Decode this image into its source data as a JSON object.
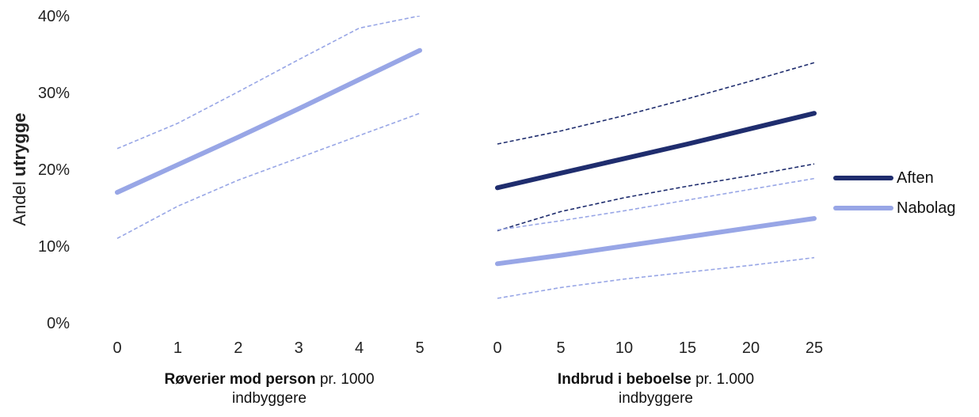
{
  "colors": {
    "aften": "#1f2d6e",
    "nabolag": "#98a6e6"
  },
  "y_axis": {
    "label_prefix": "Andel ",
    "label_bold": "utrygge",
    "ticks": [
      "0%",
      "10%",
      "20%",
      "30%",
      "40%"
    ]
  },
  "legend": {
    "aften": "Aften",
    "nabolag": "Nabolag"
  },
  "chart_data": [
    {
      "type": "line",
      "x_label_bold": "Røverier mod person",
      "x_label_rest": " pr. 1000",
      "x_label_line2": "indbyggere",
      "x": [
        0,
        1,
        2,
        3,
        4,
        5
      ],
      "ylim": [
        0,
        40
      ],
      "series": [
        {
          "name": "Nabolag",
          "color_key": "nabolag",
          "values": [
            17,
            20.6,
            24.2,
            27.9,
            31.7,
            35.5
          ],
          "ci_lower": [
            11,
            15.2,
            18.6,
            21.5,
            24.4,
            27.3
          ],
          "ci_upper": [
            22.7,
            26,
            30.1,
            34.3,
            38.4,
            42.6
          ]
        }
      ]
    },
    {
      "type": "line",
      "x_label_bold": "Indbrud i beboelse",
      "x_label_rest": " pr. 1.000",
      "x_label_line2": "indbyggere",
      "x": [
        0,
        5,
        10,
        15,
        20,
        25
      ],
      "ylim": [
        0,
        40
      ],
      "series": [
        {
          "name": "Aften",
          "color_key": "aften",
          "values": [
            17.6,
            19.5,
            21.4,
            23.3,
            25.3,
            27.3
          ],
          "ci_lower": [
            12,
            14.5,
            16.3,
            17.8,
            19.2,
            20.7
          ],
          "ci_upper": [
            23.3,
            25,
            27,
            29.2,
            31.5,
            33.9
          ]
        },
        {
          "name": "Nabolag",
          "color_key": "nabolag",
          "values": [
            7.7,
            8.8,
            10,
            11.2,
            12.4,
            13.6
          ],
          "ci_lower": [
            3.2,
            4.6,
            5.7,
            6.6,
            7.5,
            8.5
          ],
          "ci_upper": [
            12.1,
            13.3,
            14.6,
            16,
            17.4,
            18.8
          ]
        }
      ]
    }
  ]
}
